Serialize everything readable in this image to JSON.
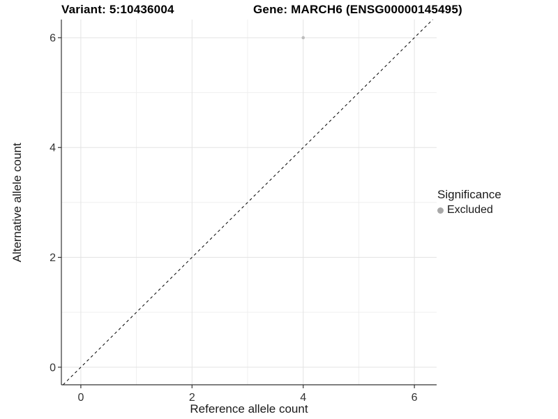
{
  "chart_data": {
    "type": "scatter",
    "titles": {
      "variant": "Variant: 5:10436004",
      "gene": "Gene: MARCH6 (ENSG00000145495)"
    },
    "xlabel": "Reference allele count",
    "ylabel": "Alternative allele count",
    "xlim": [
      -0.35,
      6.4
    ],
    "ylim": [
      -0.32,
      6.33
    ],
    "x_major_ticks": [
      0,
      2,
      4,
      6
    ],
    "y_major_ticks": [
      0,
      2,
      4,
      6
    ],
    "x_minor_gridlines": [
      1,
      3,
      5
    ],
    "y_minor_gridlines": [
      1,
      3,
      5
    ],
    "grid": true,
    "legend_position": "right",
    "series": [
      {
        "name": "Excluded",
        "points": [
          {
            "x": 4,
            "y": 6
          }
        ],
        "color": "#bdbdbd"
      }
    ],
    "reference_line": {
      "type": "identity",
      "style": "dashed",
      "color": "#000000"
    },
    "legend": {
      "title": "Significance",
      "items": [
        {
          "label": "Excluded",
          "color": "#a8a8a8"
        }
      ]
    },
    "colors": {
      "minor_grid": "#efefef",
      "major_grid": "#e3e3e3",
      "axis": "#333333",
      "tick_label": "#333333",
      "background": "#ffffff"
    }
  }
}
